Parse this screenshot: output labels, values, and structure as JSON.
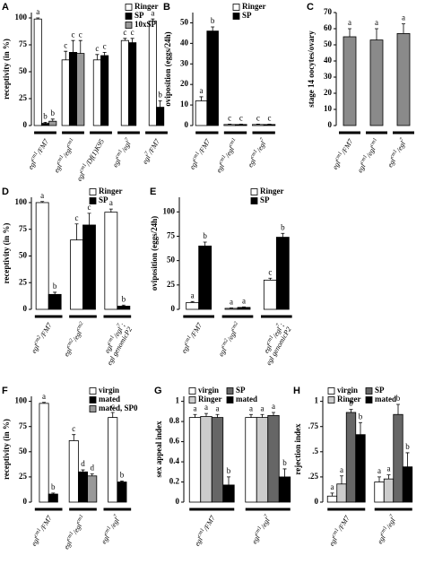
{
  "chart_data": [
    {
      "type": "bar",
      "panel": "A",
      "ylabel": "receptivity (in %)",
      "ylim": [
        0,
        105
      ],
      "yticks": [
        0,
        25,
        50,
        75,
        100
      ],
      "legend": "top-right",
      "categories": [
        "eglcm1/FM7",
        "eglcm1/eglcm1",
        "eglcm1/Df(1)K95",
        "eglcm1/egl7",
        "egl7/FM7"
      ],
      "series": [
        {
          "name": "Ringer",
          "color": "#ffffff",
          "values": [
            99,
            61,
            61,
            79,
            97
          ],
          "errors": [
            1,
            8,
            5,
            2,
            2
          ],
          "letters": [
            "a",
            "c",
            "c",
            "c",
            "a"
          ]
        },
        {
          "name": "SP",
          "color": "#000000",
          "values": [
            2,
            68,
            65,
            77,
            17
          ],
          "errors": [
            1,
            11,
            3,
            4,
            6
          ],
          "letters": [
            "b",
            "c",
            "c",
            "c",
            "b"
          ]
        },
        {
          "name": "10xSP",
          "color": "#999999",
          "values": [
            4,
            67,
            null,
            null,
            null
          ],
          "errors": [
            2,
            12,
            null,
            null,
            null
          ],
          "letters": [
            "b",
            "c",
            null,
            null,
            null
          ]
        }
      ]
    },
    {
      "type": "bar",
      "panel": "B",
      "ylabel": "oviposition (eggs/24h)",
      "ylim": [
        0,
        55
      ],
      "yticks": [
        0,
        10,
        20,
        30,
        40,
        50
      ],
      "legend": "top-right",
      "categories": [
        "eglcm1/FM7",
        "eglcm1/eglcm1",
        "eglcm1/egl7"
      ],
      "series": [
        {
          "name": "Ringer",
          "color": "#ffffff",
          "values": [
            12,
            0.5,
            0.5
          ],
          "errors": [
            2,
            0.2,
            0.2
          ],
          "letters": [
            "a",
            "c",
            "c"
          ]
        },
        {
          "name": "SP",
          "color": "#000000",
          "values": [
            46,
            0.5,
            0.5
          ],
          "errors": [
            2,
            0.2,
            0.2
          ],
          "letters": [
            "b",
            "c",
            "c"
          ]
        }
      ]
    },
    {
      "type": "bar",
      "panel": "C",
      "ylabel": "stage 14 oocytes/ovary",
      "ylim": [
        0,
        70
      ],
      "yticks": [
        0,
        10,
        20,
        30,
        40,
        50,
        60,
        70
      ],
      "categories": [
        "eglcm1/FM7",
        "eglcm1/eglcm1",
        "eglcm1/egl7"
      ],
      "color": "#8a8a8a",
      "values": [
        55,
        53,
        57
      ],
      "errors": [
        5,
        7,
        6
      ],
      "letters": [
        "a",
        "a",
        "a"
      ]
    },
    {
      "type": "bar",
      "panel": "D",
      "ylabel": "receptivity (in %)",
      "ylim": [
        0,
        105
      ],
      "yticks": [
        0,
        25,
        50,
        75,
        100
      ],
      "legend": "top-right",
      "categories": [
        "eglcm2/FM7",
        "eglcm2/eglcm2",
        "eglcm1/egl7; egl genomicP2"
      ],
      "series": [
        {
          "name": "Ringer",
          "color": "#ffffff",
          "values": [
            100,
            65,
            91
          ],
          "errors": [
            1,
            15,
            3
          ],
          "letters": [
            "a",
            "c",
            "a"
          ]
        },
        {
          "name": "SP",
          "color": "#000000",
          "values": [
            14,
            79,
            3
          ],
          "errors": [
            2,
            11,
            1
          ],
          "letters": [
            "b",
            "c",
            "b"
          ]
        }
      ]
    },
    {
      "type": "bar",
      "panel": "E",
      "ylabel": "oviposition (eggs/24h)",
      "ylim": [
        0,
        115
      ],
      "yticks": [
        0,
        25,
        50,
        75,
        100
      ],
      "legend": "top-right",
      "categories": [
        "eglcm1/FM7",
        "eglcm2/eglcm2",
        "eglcm1/egl7; egl genomicP2"
      ],
      "series": [
        {
          "name": "Ringer",
          "color": "#ffffff",
          "values": [
            7,
            1,
            30
          ],
          "errors": [
            1,
            0.5,
            2
          ],
          "letters": [
            "a",
            "a",
            "c"
          ]
        },
        {
          "name": "SP",
          "color": "#000000",
          "values": [
            65,
            2,
            74
          ],
          "errors": [
            4,
            0.5,
            4
          ],
          "letters": [
            "b",
            "a",
            "b"
          ]
        }
      ]
    },
    {
      "type": "bar",
      "panel": "F",
      "ylabel": "receptivity (in %)",
      "ylim": [
        0,
        105
      ],
      "yticks": [
        0,
        25,
        50,
        75,
        100
      ],
      "legend": "top-right",
      "categories": [
        "eglcm1/FM7",
        "eglcm1/eglcm1",
        "eglcm1/egl7"
      ],
      "series": [
        {
          "name": "virgin",
          "color": "#ffffff",
          "values": [
            98,
            61,
            84
          ],
          "errors": [
            1,
            6,
            5
          ],
          "letters": [
            "a",
            "c",
            "c"
          ]
        },
        {
          "name": "mated",
          "color": "#000000",
          "values": [
            8,
            30,
            20
          ],
          "errors": [
            1,
            2,
            1
          ],
          "letters": [
            "b",
            "d",
            "b"
          ]
        },
        {
          "name": "mated, SP0",
          "color": "#999999",
          "values": [
            null,
            26,
            null
          ],
          "errors": [
            null,
            2,
            null
          ],
          "letters": [
            null,
            "d",
            null
          ]
        }
      ]
    },
    {
      "type": "bar",
      "panel": "G",
      "ylabel": "sex appeal index",
      "ylim": [
        0,
        1.05
      ],
      "yticks": [
        0,
        0.2,
        0.4,
        0.6,
        0.8,
        1
      ],
      "legend": "top",
      "categories": [
        "eglcm1/FM7",
        "eglcm1/egl7"
      ],
      "series": [
        {
          "name": "virgin",
          "color": "#ffffff",
          "values": [
            0.84,
            0.84
          ],
          "errors": [
            0.03,
            0.03
          ],
          "letters": [
            "a",
            "a"
          ]
        },
        {
          "name": "Ringer",
          "color": "#cccccc",
          "values": [
            0.85,
            0.84
          ],
          "errors": [
            0.03,
            0.03
          ],
          "letters": [
            "a",
            "a"
          ]
        },
        {
          "name": "SP",
          "color": "#666666",
          "values": [
            0.84,
            0.86
          ],
          "errors": [
            0.03,
            0.03
          ],
          "letters": [
            "a",
            "a"
          ]
        },
        {
          "name": "mated",
          "color": "#000000",
          "values": [
            0.17,
            0.25
          ],
          "errors": [
            0.08,
            0.08
          ],
          "letters": [
            "b",
            "b"
          ]
        }
      ]
    },
    {
      "type": "bar",
      "panel": "H",
      "ylabel": "rejection index",
      "ylim": [
        0,
        1.05
      ],
      "legend": "top",
      "yticks": [
        0,
        {
          "value": 0.25,
          "label": ".25"
        },
        {
          "value": 0.5,
          "label": ".5"
        },
        {
          "value": 0.75,
          "label": ".75"
        },
        1
      ],
      "categories": [
        "eglcm1/FM7",
        "eglcm1/egl7"
      ],
      "series": [
        {
          "name": "virgin",
          "color": "#ffffff",
          "values": [
            0.06,
            0.2
          ],
          "errors": [
            0.03,
            0.05
          ],
          "letters": [
            "a",
            "a"
          ]
        },
        {
          "name": "Ringer",
          "color": "#cccccc",
          "values": [
            0.18,
            0.23
          ],
          "errors": [
            0.08,
            0.04
          ],
          "letters": [
            "a",
            "a"
          ]
        },
        {
          "name": "SP",
          "color": "#666666",
          "values": [
            0.89,
            0.87
          ],
          "errors": [
            0.03,
            0.1
          ],
          "letters": [
            "b",
            "b"
          ]
        },
        {
          "name": "mated",
          "color": "#000000",
          "values": [
            0.67,
            0.35
          ],
          "errors": [
            0.12,
            0.14
          ],
          "letters": [
            "b",
            "b"
          ]
        }
      ]
    }
  ]
}
